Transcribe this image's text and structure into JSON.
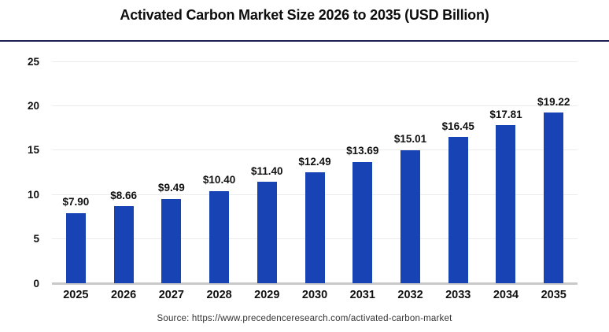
{
  "page": {
    "title": "Activated Carbon Market Size 2026 to 2035 (USD Billion)",
    "source_caption": "Source: https://www.precedenceresearch.com/activated-carbon-market"
  },
  "chart_data": {
    "type": "bar",
    "title": "Activated Carbon Market Size 2026 to 2035 (USD Billion)",
    "categories": [
      "2025",
      "2026",
      "2027",
      "2028",
      "2029",
      "2030",
      "2031",
      "2032",
      "2033",
      "2034",
      "2035"
    ],
    "values": [
      7.9,
      8.66,
      9.49,
      10.4,
      11.4,
      12.49,
      13.69,
      15.01,
      16.45,
      17.81,
      19.22
    ],
    "value_labels": [
      "$7.90",
      "$8.66",
      "$9.49",
      "$10.40",
      "$11.40",
      "$12.49",
      "$13.69",
      "$15.01",
      "$16.45",
      "$17.81",
      "$19.22"
    ],
    "xlabel": "",
    "ylabel": "",
    "ylim": [
      0,
      25
    ],
    "yticks": [
      0,
      5,
      10,
      15,
      20,
      25
    ],
    "grid": true,
    "legend": false,
    "source": "Source: https://www.precedenceresearch.com/activated-carbon-market"
  },
  "colors": {
    "bar": "#1843b5",
    "divider": "#1d1d52",
    "baseline": "#c8c8c8",
    "gridline": "#ececec",
    "text": "#111111"
  }
}
